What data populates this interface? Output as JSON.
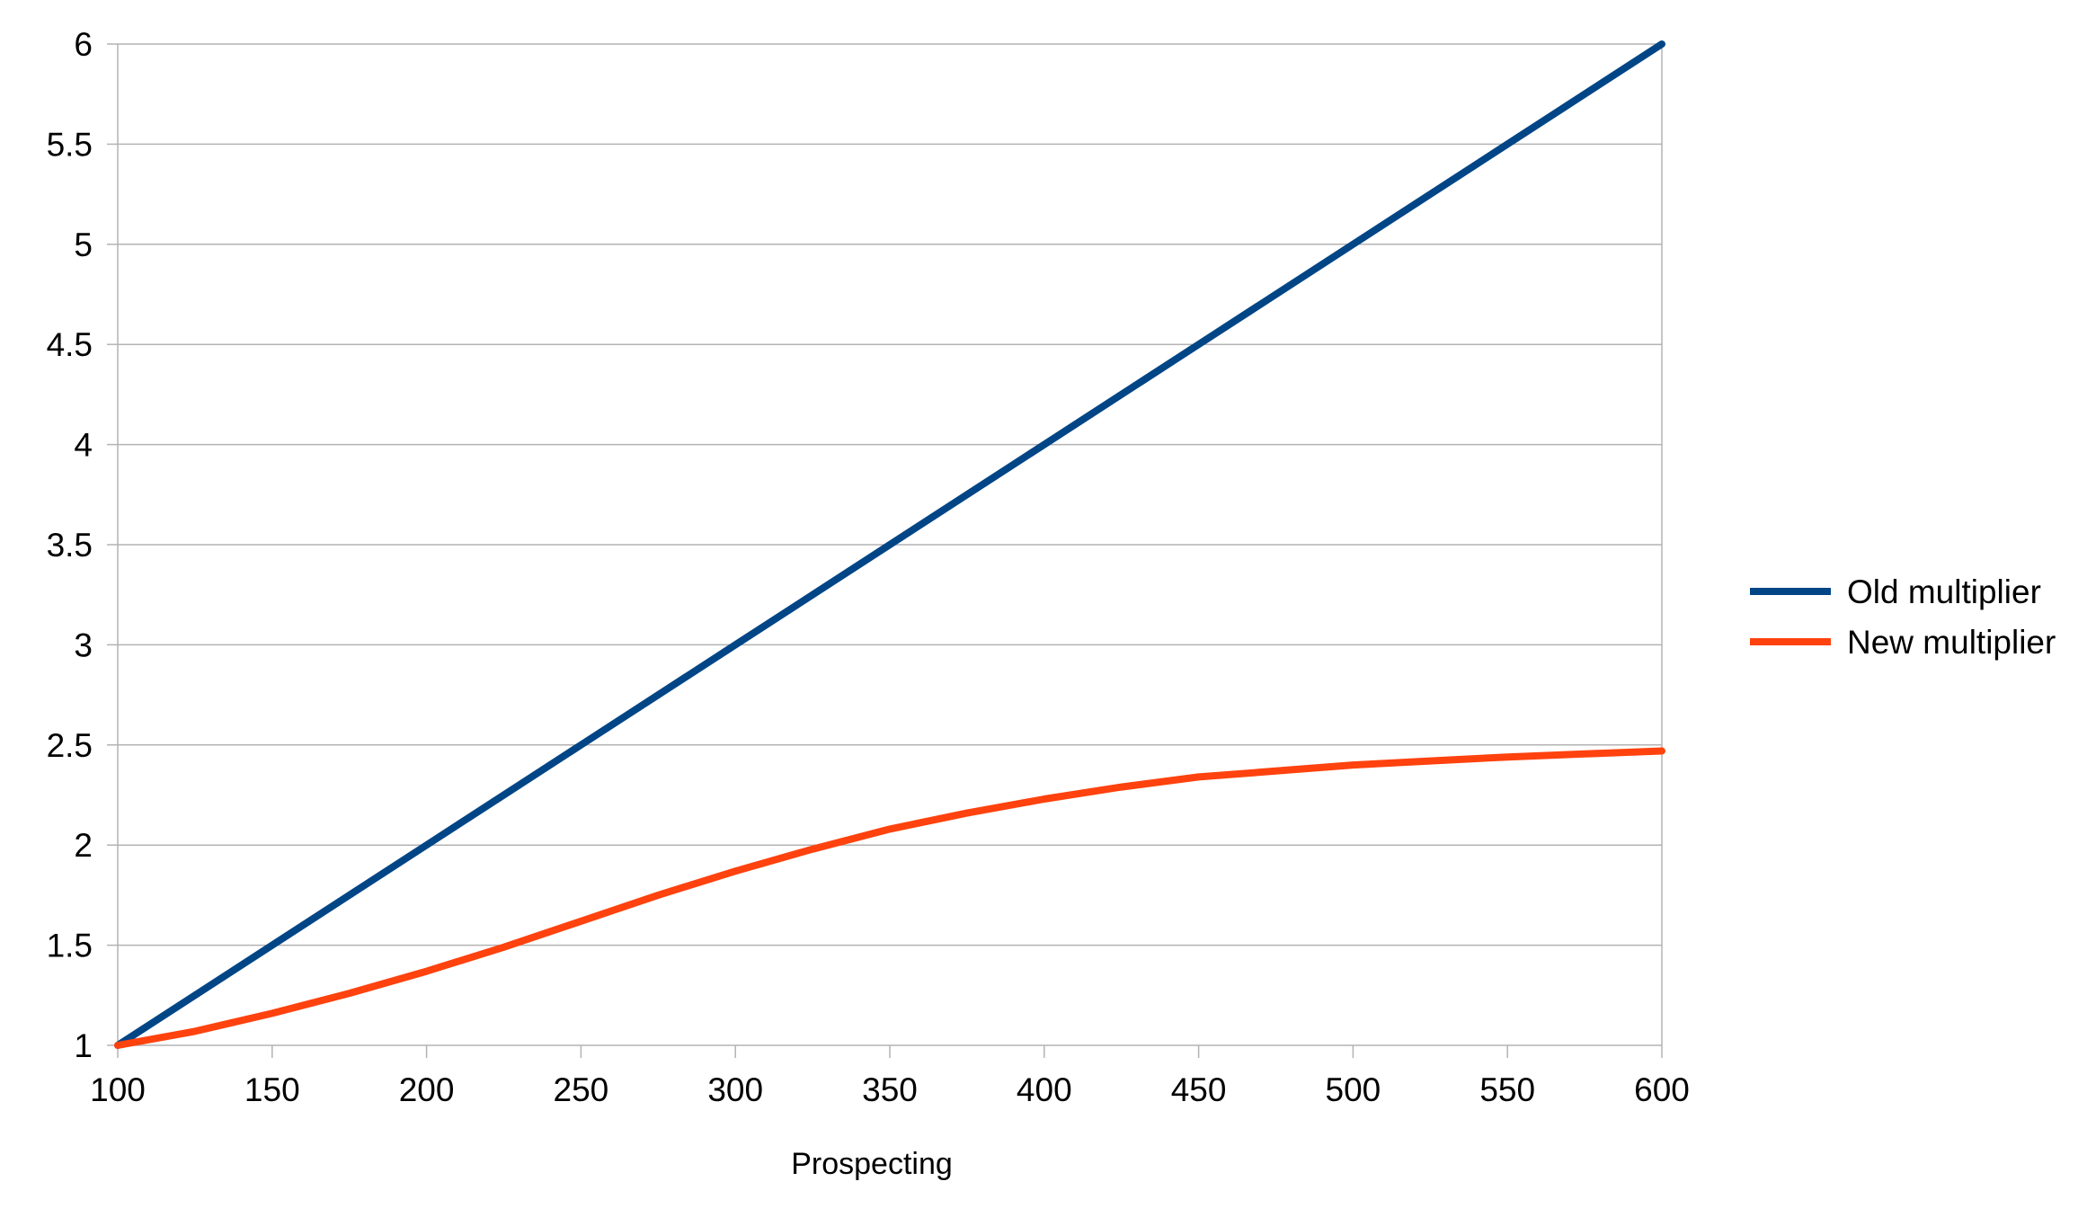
{
  "chart_data": {
    "type": "line",
    "title": "",
    "xlabel": "Prospecting",
    "ylabel": "",
    "xlim": [
      100,
      600
    ],
    "ylim": [
      1,
      6
    ],
    "x_ticks": [
      100,
      150,
      200,
      250,
      300,
      350,
      400,
      450,
      500,
      550,
      600
    ],
    "y_ticks": [
      1,
      1.5,
      2,
      2.5,
      3,
      3.5,
      4,
      4.5,
      5,
      5.5,
      6
    ],
    "grid": "horizontal",
    "legend_position": "right",
    "series": [
      {
        "name": "Old multiplier",
        "color": "#004586",
        "x": [
          100,
          150,
          200,
          250,
          300,
          350,
          400,
          450,
          500,
          550,
          600
        ],
        "y": [
          1,
          1.5,
          2,
          2.5,
          3,
          3.5,
          4,
          4.5,
          5,
          5.5,
          6
        ]
      },
      {
        "name": "New multiplier",
        "color": "#ff420e",
        "x": [
          100,
          125,
          150,
          175,
          200,
          225,
          250,
          275,
          300,
          325,
          350,
          375,
          400,
          425,
          450,
          475,
          500,
          525,
          550,
          575,
          600
        ],
        "y": [
          1.0,
          1.07,
          1.16,
          1.26,
          1.37,
          1.49,
          1.62,
          1.75,
          1.87,
          1.98,
          2.08,
          2.16,
          2.23,
          2.29,
          2.34,
          2.37,
          2.4,
          2.42,
          2.44,
          2.455,
          2.47
        ]
      }
    ]
  }
}
